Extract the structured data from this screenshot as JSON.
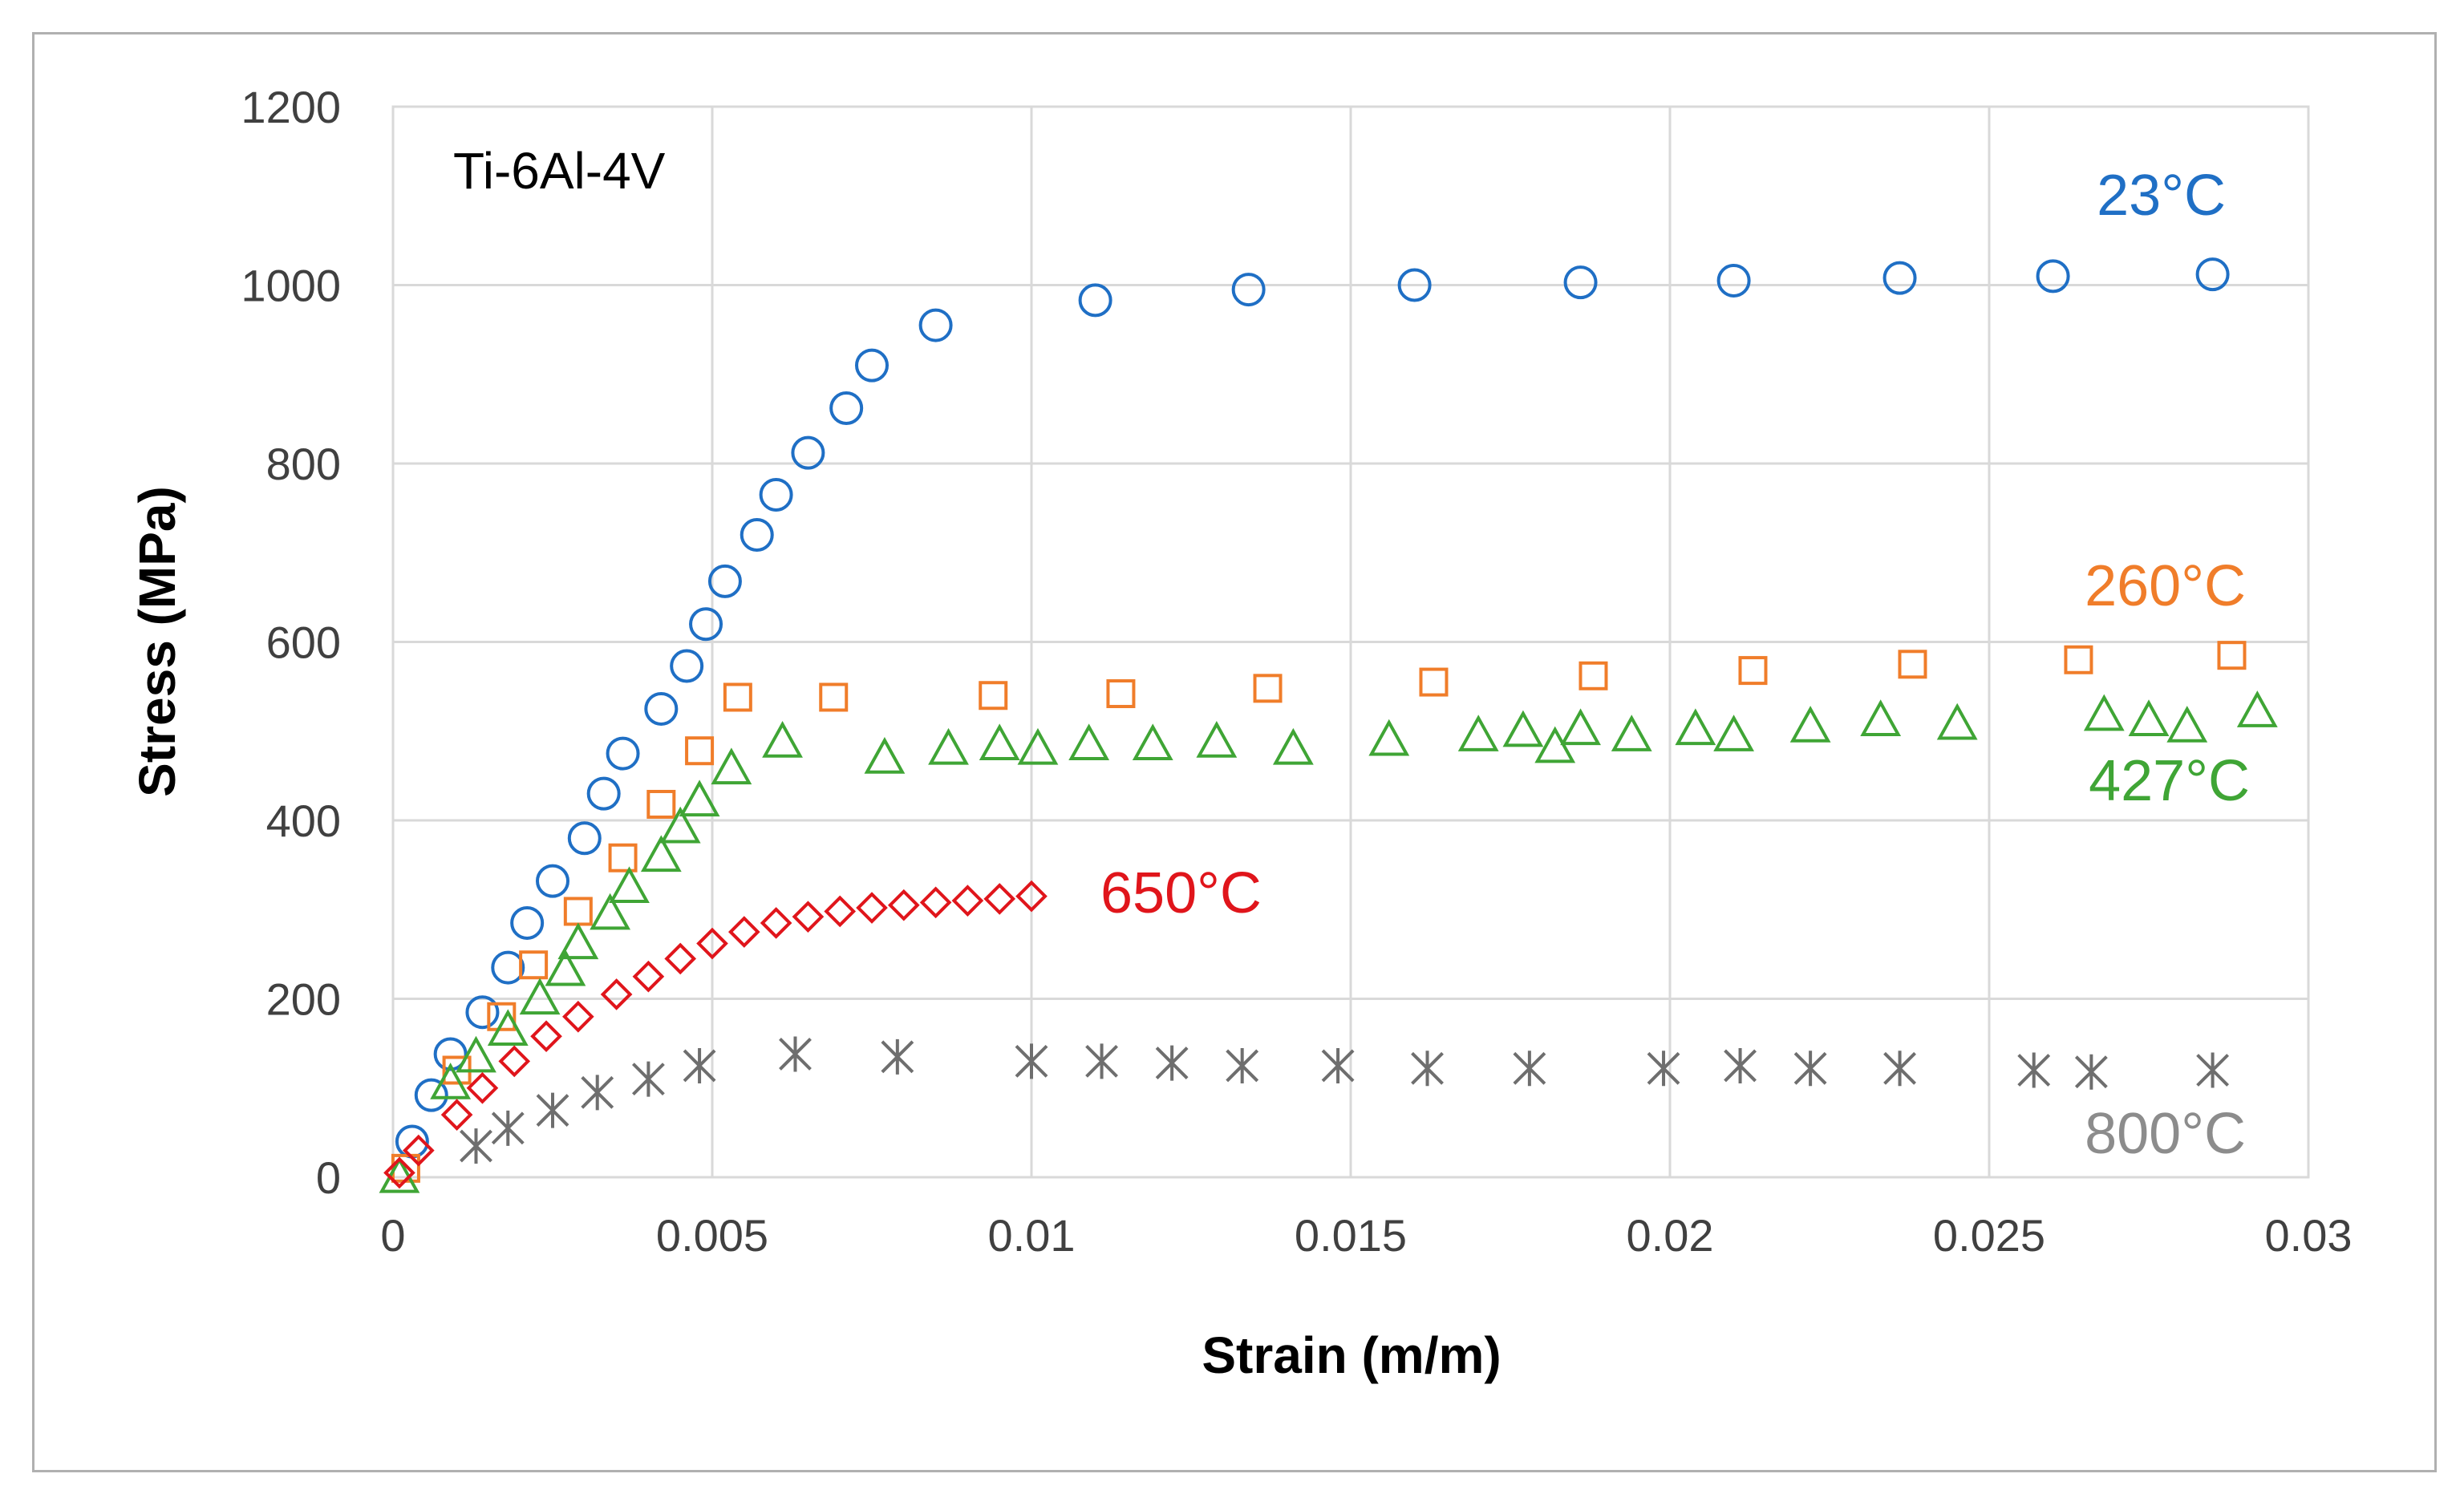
{
  "chart_data": {
    "type": "scatter",
    "annotation": "Ti-6Al-4V",
    "xlabel": "Strain (m/m)",
    "ylabel": "Stress (MPa)",
    "xlim": [
      0,
      0.03
    ],
    "ylim": [
      0,
      1200
    ],
    "x_ticks": [
      "0",
      "0.005",
      "0.01",
      "0.015",
      "0.02",
      "0.025",
      "0.03"
    ],
    "y_ticks": [
      "0",
      "200",
      "400",
      "600",
      "800",
      "1000",
      "1200"
    ],
    "grid": true,
    "series": [
      {
        "name": "23°C",
        "color": "#1f6fc5",
        "marker": "circle",
        "x": [
          0.0003,
          0.0006,
          0.0009,
          0.0014,
          0.0018,
          0.0021,
          0.0025,
          0.003,
          0.0033,
          0.0036,
          0.0042,
          0.0046,
          0.0049,
          0.0052,
          0.0057,
          0.006,
          0.0065,
          0.0071,
          0.0075,
          0.0085,
          0.011,
          0.0134,
          0.016,
          0.0186,
          0.021,
          0.0236,
          0.026,
          0.0285
        ],
        "y": [
          40,
          92,
          138,
          185,
          235,
          285,
          332,
          380,
          430,
          475,
          525,
          573,
          620,
          668,
          720,
          765,
          812,
          862,
          910,
          955,
          983,
          995,
          1000,
          1003,
          1005,
          1008,
          1010,
          1012
        ]
      },
      {
        "name": "260°C",
        "color": "#f07d2a",
        "marker": "square",
        "x": [
          0.0002,
          0.001,
          0.0017,
          0.0022,
          0.0029,
          0.0036,
          0.0042,
          0.0048,
          0.0054,
          0.0069,
          0.0094,
          0.0114,
          0.0137,
          0.0163,
          0.0188,
          0.0213,
          0.0238,
          0.0264,
          0.0288
        ],
        "y": [
          10,
          120,
          180,
          238,
          298,
          358,
          418,
          478,
          538,
          538,
          540,
          542,
          548,
          555,
          562,
          568,
          575,
          580,
          585
        ]
      },
      {
        "name": "427°C",
        "color": "#3fa535",
        "marker": "triangle",
        "x": [
          0.0001,
          0.0009,
          0.0013,
          0.0018,
          0.0023,
          0.0027,
          0.0029,
          0.0034,
          0.0037,
          0.0042,
          0.0045,
          0.0048,
          0.0053,
          0.0061,
          0.0077,
          0.0087,
          0.0095,
          0.0101,
          0.0109,
          0.0119,
          0.0129,
          0.0141,
          0.0156,
          0.017,
          0.0177,
          0.0182,
          0.0186,
          0.0194,
          0.0204,
          0.021,
          0.0222,
          0.0233,
          0.0245,
          0.0268,
          0.0275,
          0.0281,
          0.0292
        ],
        "y": [
          0,
          105,
          135,
          165,
          200,
          232,
          262,
          295,
          325,
          360,
          392,
          422,
          458,
          488,
          470,
          480,
          485,
          480,
          485,
          485,
          488,
          480,
          490,
          495,
          500,
          482,
          502,
          495,
          502,
          495,
          505,
          512,
          508,
          518,
          512,
          505,
          522
        ]
      },
      {
        "name": "650°C",
        "color": "#e0151b",
        "marker": "diamond",
        "x": [
          0.0001,
          0.0004,
          0.001,
          0.0014,
          0.0019,
          0.0024,
          0.0029,
          0.0035,
          0.004,
          0.0045,
          0.005,
          0.0055,
          0.006,
          0.0065,
          0.007,
          0.0075,
          0.008,
          0.0085,
          0.009,
          0.0095,
          0.01
        ],
        "y": [
          5,
          30,
          70,
          100,
          130,
          158,
          180,
          205,
          225,
          245,
          262,
          275,
          285,
          292,
          298,
          302,
          305,
          308,
          310,
          312,
          315
        ]
      },
      {
        "name": "800°C",
        "color": "#6e6e6e",
        "marker": "asterisk",
        "x": [
          0.0013,
          0.0018,
          0.0025,
          0.0032,
          0.004,
          0.0048,
          0.0063,
          0.0079,
          0.01,
          0.0111,
          0.0122,
          0.0133,
          0.0148,
          0.0162,
          0.0178,
          0.0199,
          0.0211,
          0.0222,
          0.0236,
          0.0257,
          0.0266,
          0.0285
        ],
        "y": [
          35,
          55,
          75,
          95,
          110,
          125,
          138,
          135,
          130,
          130,
          128,
          125,
          125,
          122,
          122,
          122,
          125,
          122,
          122,
          120,
          118,
          120
        ]
      }
    ]
  }
}
